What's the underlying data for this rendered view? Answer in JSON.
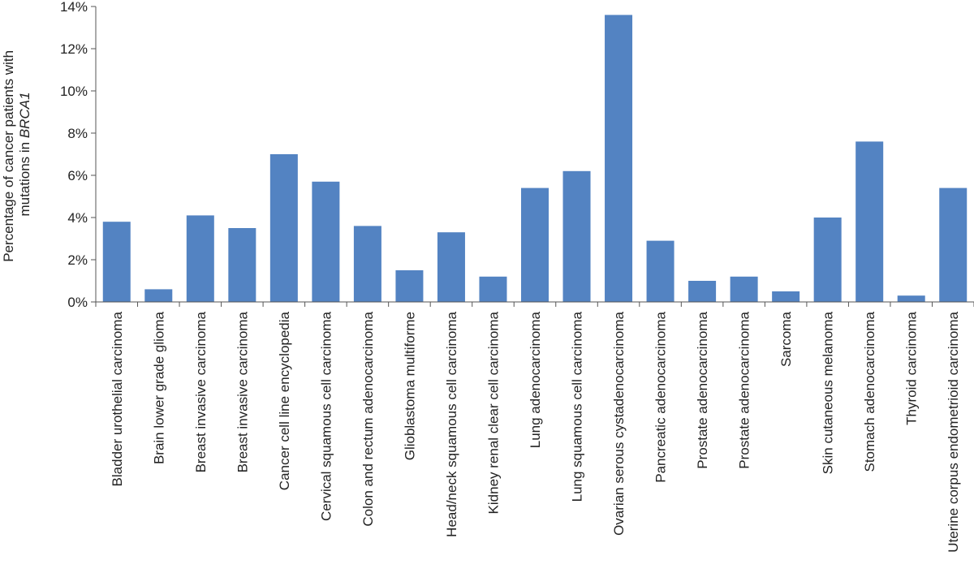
{
  "chart_data": {
    "type": "bar",
    "title": "",
    "xlabel": "",
    "ylabel": {
      "line1": "Percentage of cancer patients with",
      "line2_prefix": "mutations in ",
      "line2_gene": "BRCA1"
    },
    "ylim": [
      0,
      14
    ],
    "yticks": [
      0,
      2,
      4,
      6,
      8,
      10,
      12,
      14
    ],
    "ytick_labels": [
      "0%",
      "2%",
      "4%",
      "6%",
      "8%",
      "10%",
      "12%",
      "14%"
    ],
    "grid": false,
    "legend": "none",
    "bar_color": "#5383c2",
    "categories": [
      "Bladder urothelial carcinoma",
      "Brain lower grade glioma",
      "Breast invasive carcinoma",
      "Breast invasive carcinoma",
      "Cancer cell line encyclopedia",
      "Cervical squamous cell carcinoma",
      "Colon and rectum adenocarcinoma",
      "Glioblastoma multiforme",
      "Head/neck squamous cell carcinoma",
      "Kidney renal clear cell carcinoma",
      "Lung adenocarcinoma",
      "Lung squamous cell carcinoma",
      "Ovarian serous cystadenocarcinoma",
      "Pancreatic adenocarcinoma",
      "Prostate adenocarcinoma",
      "Prostate adenocarcinoma",
      "Sarcoma",
      "Skin cutaneous melanoma",
      "Stomach adenocarcinoma",
      "Thyroid carcinoma",
      "Uterine corpus endometrioid carcinoma"
    ],
    "values": [
      3.8,
      0.6,
      4.1,
      3.5,
      7.0,
      5.7,
      3.6,
      1.5,
      3.3,
      1.2,
      5.4,
      6.2,
      13.6,
      2.9,
      1.0,
      1.2,
      0.5,
      4.0,
      7.6,
      0.3,
      5.4
    ]
  }
}
